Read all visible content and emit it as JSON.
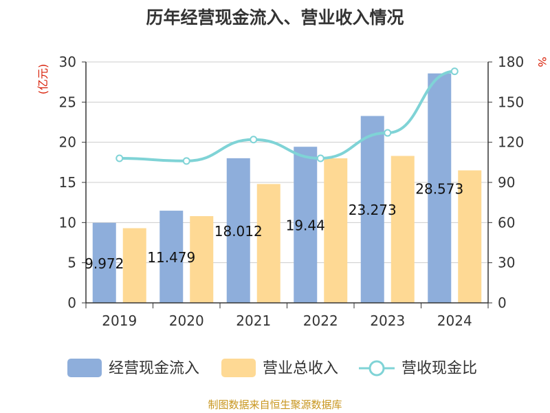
{
  "chart_data": {
    "type": "bar",
    "title": "历年经营现金流入、营业收入情况",
    "categories": [
      "2019",
      "2020",
      "2021",
      "2022",
      "2023",
      "2024"
    ],
    "series": [
      {
        "name": "经营现金流入",
        "kind": "bar",
        "axis": "left",
        "values": [
          9.972,
          11.479,
          18.012,
          19.44,
          23.273,
          28.573
        ],
        "data_labels": [
          "9.972",
          "11.479",
          "18.012",
          "19.44",
          "23.273",
          "28.573"
        ]
      },
      {
        "name": "营业总收入",
        "kind": "bar",
        "axis": "left",
        "values": [
          9.3,
          10.8,
          14.8,
          18.0,
          18.3,
          16.5
        ]
      },
      {
        "name": "营收现金比",
        "kind": "line",
        "axis": "right",
        "values": [
          108,
          106,
          122,
          108,
          127,
          173
        ]
      }
    ],
    "y_left": {
      "label": "(亿元)",
      "ylim": [
        0,
        30
      ],
      "ticks": [
        0,
        5,
        10,
        15,
        20,
        25,
        30
      ]
    },
    "y_right": {
      "label": "%",
      "ylim": [
        0,
        180
      ],
      "ticks": [
        0,
        30,
        60,
        90,
        120,
        150,
        180
      ]
    },
    "grid": true,
    "legend_position": "bottom",
    "colors": {
      "cash_inflow": "#8eaedb",
      "revenue": "#fed994",
      "ratio": "#7fd3d6",
      "unit": "#d81e06",
      "source": "#c8961e"
    }
  },
  "source_note": "制图数据来自恒生聚源数据库"
}
